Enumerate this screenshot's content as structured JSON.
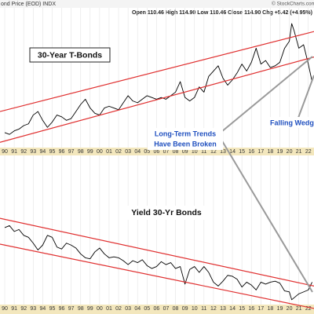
{
  "chart_data": [
    {
      "type": "line",
      "title": "30-Year T-Bonds",
      "header": "ond Price (EOD) INDX",
      "quote": "Open 110.46  High 114.90  Low 110.46  Close 114.90  Chg +5.42 (+4.95%)",
      "credit": "© StockCharts.com",
      "annotations": [
        "Long-Term Trends",
        "Have Been Broken",
        "Falling Wedge"
      ],
      "grid": true,
      "xlim": [
        1989.5,
        2022.6
      ],
      "ylim": [
        55,
        205
      ],
      "xticks": [
        {
          "value": 1990,
          "label": "90"
        },
        {
          "value": 1991,
          "label": "91"
        },
        {
          "value": 1992,
          "label": "92"
        },
        {
          "value": 1993,
          "label": "93"
        },
        {
          "value": 1994,
          "label": "94"
        },
        {
          "value": 1995,
          "label": "95"
        },
        {
          "value": 1996,
          "label": "96"
        },
        {
          "value": 1997,
          "label": "97"
        },
        {
          "value": 1998,
          "label": "98"
        },
        {
          "value": 1999,
          "label": "99"
        },
        {
          "value": 2000,
          "label": "00"
        },
        {
          "value": 2001,
          "label": "01"
        },
        {
          "value": 2002,
          "label": "02"
        },
        {
          "value": 2003,
          "label": "03"
        },
        {
          "value": 2004,
          "label": "04"
        },
        {
          "value": 2005,
          "label": "05"
        },
        {
          "value": 2006,
          "label": "06"
        },
        {
          "value": 2007,
          "label": "07"
        },
        {
          "value": 2008,
          "label": "08"
        },
        {
          "value": 2009,
          "label": "09"
        },
        {
          "value": 2010,
          "label": "10"
        },
        {
          "value": 2011,
          "label": "11"
        },
        {
          "value": 2012,
          "label": "12"
        },
        {
          "value": 2013,
          "label": "13"
        },
        {
          "value": 2014,
          "label": "14"
        },
        {
          "value": 2015,
          "label": "15"
        },
        {
          "value": 2016,
          "label": "16"
        },
        {
          "value": 2017,
          "label": "17"
        },
        {
          "value": 2018,
          "label": "18"
        },
        {
          "value": 2019,
          "label": "19"
        },
        {
          "value": 2020,
          "label": "20"
        },
        {
          "value": 2021,
          "label": "21"
        },
        {
          "value": 2022,
          "label": "22"
        }
      ],
      "x": [
        1990,
        1990.5,
        1991,
        1991.5,
        1992,
        1992.5,
        1993,
        1993.5,
        1994,
        1994.5,
        1995,
        1995.5,
        1996,
        1996.5,
        1997,
        1997.5,
        1998,
        1998.5,
        1999,
        1999.5,
        2000,
        2000.5,
        2001,
        2001.5,
        2002,
        2002.5,
        2003,
        2003.5,
        2004,
        2004.5,
        2005,
        2005.5,
        2006,
        2006.5,
        2007,
        2007.5,
        2008,
        2008.5,
        2009,
        2009.5,
        2010,
        2010.5,
        2011,
        2011.5,
        2012,
        2012.5,
        2013,
        2013.5,
        2014,
        2014.5,
        2015,
        2015.5,
        2016,
        2016.5,
        2017,
        2017.5,
        2018,
        2018.5,
        2019,
        2019.5,
        2020,
        2020.25,
        2020.5,
        2021,
        2021.5,
        2022,
        2022.4
      ],
      "series": [
        {
          "color": "#000000",
          "values": [
            72,
            70,
            74,
            76,
            80,
            82,
            92,
            96,
            86,
            78,
            84,
            92,
            90,
            86,
            88,
            96,
            104,
            110,
            100,
            94,
            92,
            100,
            102,
            100,
            98,
            106,
            114,
            108,
            106,
            110,
            114,
            112,
            110,
            112,
            110,
            114,
            118,
            130,
            112,
            108,
            112,
            124,
            118,
            136,
            142,
            148,
            134,
            126,
            132,
            140,
            150,
            142,
            152,
            168,
            150,
            154,
            146,
            148,
            152,
            168,
            176,
            196,
            188,
            168,
            172,
            150,
            130
          ]
        }
      ],
      "trend_lines": [
        {
          "color": "#e03030",
          "x": [
            1989.5,
            2022.6
          ],
          "y": [
            96,
            187
          ]
        },
        {
          "color": "#e03030",
          "x": [
            1989.5,
            2022.6
          ],
          "y": [
            61,
            158
          ]
        }
      ]
    },
    {
      "type": "line",
      "title": "Yield 30-Yr Bonds",
      "grid": true,
      "xlim": [
        1989.5,
        2022.6
      ],
      "ylim": [
        0.7,
        16
      ],
      "xticks": [
        {
          "value": 1990,
          "label": "90"
        },
        {
          "value": 1991,
          "label": "91"
        },
        {
          "value": 1992,
          "label": "92"
        },
        {
          "value": 1993,
          "label": "93"
        },
        {
          "value": 1994,
          "label": "94"
        },
        {
          "value": 1995,
          "label": "95"
        },
        {
          "value": 1996,
          "label": "96"
        },
        {
          "value": 1997,
          "label": "97"
        },
        {
          "value": 1998,
          "label": "98"
        },
        {
          "value": 1999,
          "label": "99"
        },
        {
          "value": 2000,
          "label": "00"
        },
        {
          "value": 2001,
          "label": "01"
        },
        {
          "value": 2002,
          "label": "02"
        },
        {
          "value": 2003,
          "label": "03"
        },
        {
          "value": 2004,
          "label": "04"
        },
        {
          "value": 2005,
          "label": "05"
        },
        {
          "value": 2006,
          "label": "06"
        },
        {
          "value": 2007,
          "label": "07"
        },
        {
          "value": 2008,
          "label": "08"
        },
        {
          "value": 2009,
          "label": "09"
        },
        {
          "value": 2010,
          "label": "10"
        },
        {
          "value": 2011,
          "label": "11"
        },
        {
          "value": 2012,
          "label": "12"
        },
        {
          "value": 2013,
          "label": "13"
        },
        {
          "value": 2014,
          "label": "14"
        },
        {
          "value": 2015,
          "label": "15"
        },
        {
          "value": 2016,
          "label": "16"
        },
        {
          "value": 2017,
          "label": "17"
        },
        {
          "value": 2018,
          "label": "18"
        },
        {
          "value": 2019,
          "label": "19"
        },
        {
          "value": 2020,
          "label": "20"
        },
        {
          "value": 2021,
          "label": "21"
        },
        {
          "value": 2022,
          "label": "22"
        }
      ],
      "x": [
        1990,
        1990.5,
        1991,
        1991.5,
        1992,
        1992.5,
        1993,
        1993.5,
        1994,
        1994.5,
        1995,
        1995.5,
        1996,
        1996.5,
        1997,
        1997.5,
        1998,
        1998.5,
        1999,
        1999.5,
        2000,
        2000.5,
        2001,
        2001.5,
        2002,
        2002.5,
        2003,
        2003.5,
        2004,
        2004.5,
        2005,
        2005.5,
        2006,
        2006.5,
        2007,
        2007.5,
        2008,
        2008.5,
        2009,
        2009.5,
        2010,
        2010.5,
        2011,
        2011.5,
        2012,
        2012.5,
        2013,
        2013.5,
        2014,
        2014.5,
        2015,
        2015.5,
        2016,
        2016.5,
        2017,
        2017.5,
        2018,
        2018.5,
        2019,
        2019.5,
        2020,
        2020.25,
        2020.5,
        2021,
        2021.5,
        2022,
        2022.4
      ],
      "series": [
        {
          "color": "#000000",
          "values": [
            8.6,
            8.8,
            8.2,
            8.4,
            7.8,
            7.6,
            7.0,
            6.3,
            6.8,
            7.8,
            7.6,
            6.6,
            6.4,
            7.0,
            6.8,
            6.5,
            5.9,
            5.5,
            5.4,
            6.1,
            6.5,
            5.9,
            5.5,
            5.6,
            5.5,
            5.2,
            4.8,
            5.2,
            5.0,
            5.3,
            4.7,
            4.4,
            4.6,
            5.1,
            4.8,
            5.0,
            4.4,
            4.6,
            2.8,
            4.3,
            4.6,
            4.0,
            4.6,
            4.0,
            3.0,
            2.6,
            3.1,
            3.7,
            3.6,
            3.3,
            2.5,
            3.0,
            2.7,
            2.2,
            3.0,
            2.8,
            3.0,
            3.1,
            2.9,
            2.1,
            2.0,
            1.2,
            1.4,
            1.8,
            2.0,
            2.2,
            3.0
          ]
        }
      ],
      "trend_lines": [
        {
          "color": "#e03030",
          "x": [
            1989.5,
            2022.6
          ],
          "y": [
            9.55,
            2.6
          ]
        },
        {
          "color": "#e03030",
          "x": [
            1989.5,
            2022.6
          ],
          "y": [
            6.9,
            0.3
          ]
        }
      ]
    }
  ]
}
